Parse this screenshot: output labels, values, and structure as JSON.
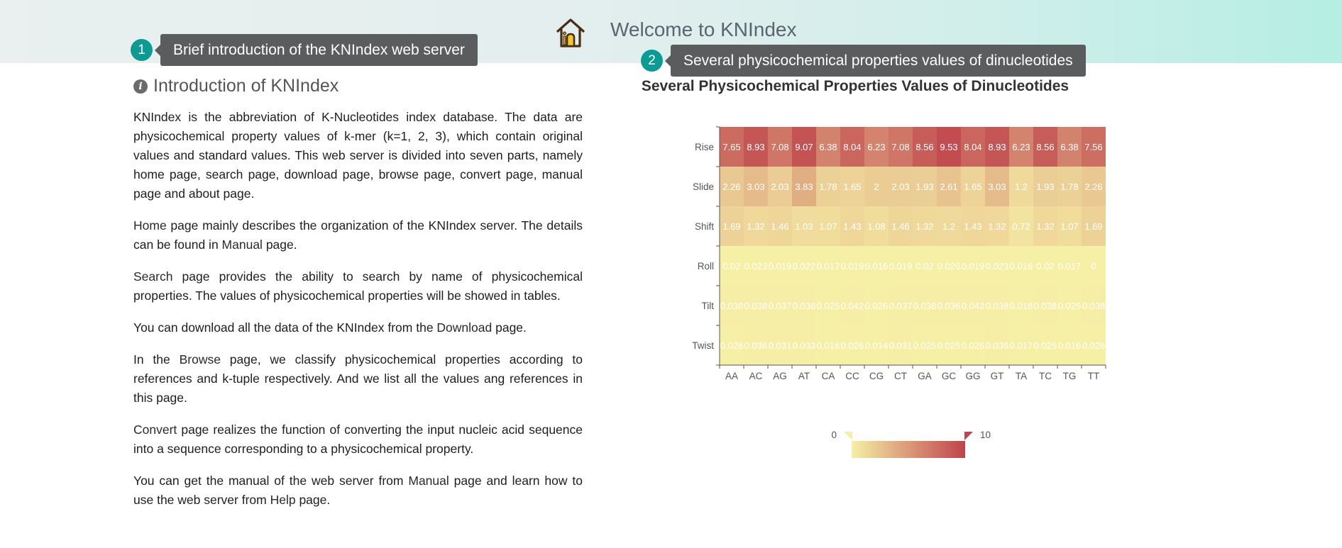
{
  "header": {
    "title": "Welcome to KNIndex",
    "icon": "home-icon"
  },
  "callouts": [
    {
      "number": "1",
      "text": "Brief introduction of the KNIndex web server"
    },
    {
      "number": "2",
      "text": "Several physicochemical properties values of dinucleotides"
    }
  ],
  "intro": {
    "heading": "Introduction of KNIndex",
    "heading_icon": "info-icon",
    "paragraphs": [
      [
        "KNIndex is the abbreviation of K-Nucleotides index database. The data are physicochemical property values of k-mer (k=1, 2, 3), which contain original values and standard values. This web server is divided into seven parts, namely home page, search page, download page, browse page, convert page, manual page and about page."
      ],
      [
        "",
        "Home",
        " page mainly describes the organization of the KNIndex server. The details can be found in ",
        "Manual",
        " page."
      ],
      [
        "",
        "Search",
        " page provides the ability to search by name of physicochemical properties. The values of physicochemical properties will be showed in tables."
      ],
      [
        "You can download all the data of the KNIndex from the ",
        "Download",
        " page."
      ],
      [
        "In the ",
        "Browse",
        " page, we classify physicochemical properties according to references and k-tuple respectively. And we list all the values ang references in this page."
      ],
      [
        "",
        "Convert",
        " page realizes the function of converting the input nucleic acid sequence into a sequence corresponding to a physicochemical property."
      ],
      [
        "You can get the manual of the web server from ",
        "Manual",
        " page and learn how to use the web server from ",
        "Help",
        " page."
      ]
    ]
  },
  "chart_data": {
    "type": "heatmap",
    "title": "Several Physicochemical Properties Values of Dinucleotides",
    "x_categories": [
      "AA",
      "AC",
      "AG",
      "AT",
      "CA",
      "CC",
      "CG",
      "CT",
      "GA",
      "GC",
      "GG",
      "GT",
      "TA",
      "TC",
      "TG",
      "TT"
    ],
    "y_categories": [
      "Rise",
      "Slide",
      "Shift",
      "Roll",
      "Tilt",
      "Twist"
    ],
    "values": [
      [
        7.65,
        8.93,
        7.08,
        9.07,
        6.38,
        8.04,
        6.23,
        7.08,
        8.56,
        9.53,
        8.04,
        8.93,
        6.23,
        8.56,
        6.38,
        7.56
      ],
      [
        2.26,
        3.03,
        2.03,
        3.83,
        1.78,
        1.65,
        2,
        2.03,
        1.93,
        2.61,
        1.65,
        3.03,
        1.2,
        1.93,
        1.78,
        2.26
      ],
      [
        1.69,
        1.32,
        1.46,
        1.03,
        1.07,
        1.43,
        1.08,
        1.46,
        1.32,
        1.2,
        1.43,
        1.32,
        0.72,
        1.32,
        1.07,
        1.69
      ],
      [
        0.02,
        0.023,
        0.019,
        0.022,
        0.017,
        0.019,
        0.016,
        0.019,
        0.02,
        0.026,
        0.019,
        0.023,
        0.016,
        0.02,
        0.017,
        0
      ],
      [
        0.038,
        0.038,
        0.037,
        0.036,
        0.025,
        0.042,
        0.026,
        0.037,
        0.038,
        0.036,
        0.042,
        0.038,
        0.018,
        0.038,
        0.025,
        0.038
      ],
      [
        0.026,
        0.036,
        0.031,
        0.033,
        0.016,
        0.026,
        0.014,
        0.031,
        0.025,
        0.025,
        0.026,
        0.036,
        0.017,
        0.025,
        0.016,
        0.026
      ]
    ],
    "visual_map": {
      "min": 0,
      "max": 10,
      "min_label": "0",
      "max_label": "10"
    },
    "colors": {
      "low": "#f6efa6",
      "high": "#bf444c"
    }
  }
}
